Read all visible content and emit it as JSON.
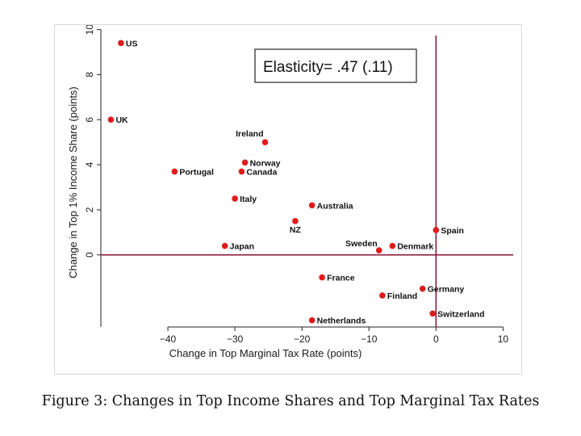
{
  "caption": "Figure 3: Changes in Top Income Shares and Top Marginal Tax Rates",
  "colors": {
    "point": "#e01a1a",
    "refline": "#8b1a3a",
    "axis": "#222222"
  },
  "chart_data": {
    "type": "scatter",
    "xlabel": "Change in Top Marginal Tax Rate (points)",
    "ylabel": "Change in Top 1% Income Share (points)",
    "xlim": [
      -50,
      12
    ],
    "ylim": [
      -3.2,
      10.2
    ],
    "xticks": [
      -40,
      -30,
      -20,
      -10,
      0,
      10
    ],
    "xtick_labels": [
      "−40",
      "−30",
      "−20",
      "−10",
      "0",
      "10"
    ],
    "yticks": [
      0,
      2,
      4,
      6,
      8,
      10
    ],
    "ytick_labels": [
      "0",
      "2",
      "4",
      "6",
      "8",
      "10"
    ],
    "reference_lines": {
      "x": 0,
      "y": 0
    },
    "annotation": "Elasticity= .47 (.11)",
    "points": [
      {
        "label": "US",
        "x": -47,
        "y": 9.4
      },
      {
        "label": "UK",
        "x": -48.5,
        "y": 6.0
      },
      {
        "label": "Ireland",
        "x": -25.5,
        "y": 5.0
      },
      {
        "label": "Norway",
        "x": -28.5,
        "y": 4.1
      },
      {
        "label": "Portugal",
        "x": -39,
        "y": 3.7
      },
      {
        "label": "Canada",
        "x": -29,
        "y": 3.7
      },
      {
        "label": "Italy",
        "x": -30,
        "y": 2.5
      },
      {
        "label": "Australia",
        "x": -18.5,
        "y": 2.2
      },
      {
        "label": "NZ",
        "x": -21,
        "y": 1.5
      },
      {
        "label": "Japan",
        "x": -31.5,
        "y": 0.4
      },
      {
        "label": "Spain",
        "x": 0,
        "y": 1.1
      },
      {
        "label": "Sweden",
        "x": -8.5,
        "y": 0.2
      },
      {
        "label": "Denmark",
        "x": -6.5,
        "y": 0.4
      },
      {
        "label": "France",
        "x": -17,
        "y": -1.0
      },
      {
        "label": "Germany",
        "x": -2,
        "y": -1.5
      },
      {
        "label": "Finland",
        "x": -8,
        "y": -1.8
      },
      {
        "label": "Switzerland",
        "x": -0.5,
        "y": -2.6
      },
      {
        "label": "Netherlands",
        "x": -18.5,
        "y": -2.9
      }
    ]
  }
}
